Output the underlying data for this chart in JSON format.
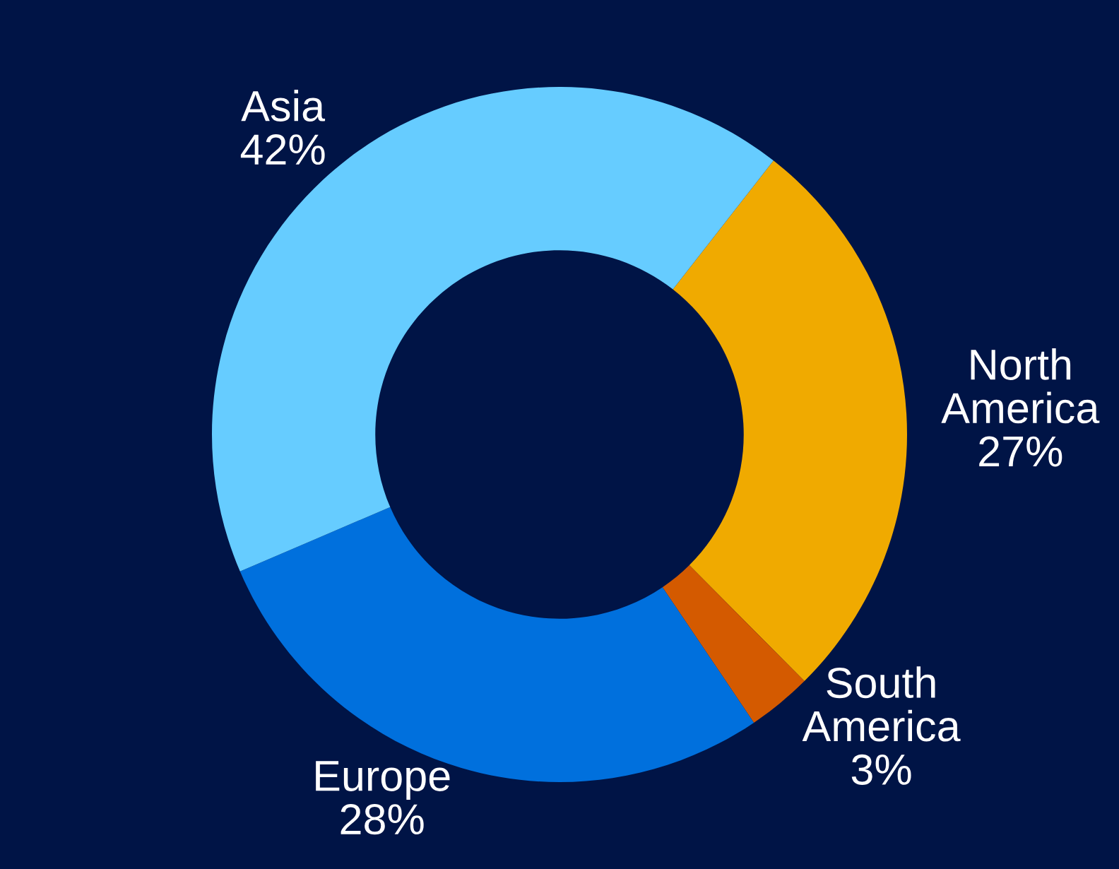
{
  "chart_data": {
    "type": "donut",
    "categories": [
      "North America",
      "South America",
      "Europe",
      "Asia"
    ],
    "values": [
      27,
      3,
      28,
      42
    ],
    "colors": [
      "#f0aa00",
      "#d45a00",
      "#0070dd",
      "#66ccff"
    ],
    "value_labels": [
      "27%",
      "3%",
      "28%",
      "42%"
    ]
  }
}
